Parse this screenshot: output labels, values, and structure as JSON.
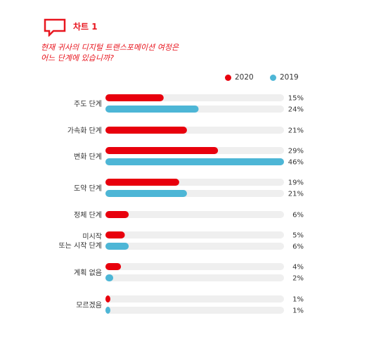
{
  "header": {
    "chart_label": "차트 1",
    "question_line1": "현재 귀사의 디지털 트랜스포메이션 여정은",
    "question_line2": "어느 단계에 있습니까?"
  },
  "colors": {
    "accent": "#e8161f",
    "series_2020": "#e8000d",
    "series_2019": "#4db6d6",
    "track": "#efefef"
  },
  "chart_data": {
    "type": "bar",
    "orientation": "horizontal",
    "xlim": [
      0,
      46
    ],
    "legend_position": "top-right",
    "grid": false,
    "series": [
      {
        "name": "2020",
        "color": "#e8000d"
      },
      {
        "name": "2019",
        "color": "#4db6d6"
      }
    ],
    "categories": [
      {
        "label_lines": [
          "주도 단계"
        ],
        "values": {
          "2020": 15,
          "2019": 24
        }
      },
      {
        "label_lines": [
          "가속화 단계"
        ],
        "values": {
          "2020": 21
        }
      },
      {
        "label_lines": [
          "변화 단계"
        ],
        "values": {
          "2020": 29,
          "2019": 46
        }
      },
      {
        "label_lines": [
          "도약 단계"
        ],
        "values": {
          "2020": 19,
          "2019": 21
        }
      },
      {
        "label_lines": [
          "정체 단계"
        ],
        "values": {
          "2020": 6
        }
      },
      {
        "label_lines": [
          "미시작",
          "또는 시작 단계"
        ],
        "values": {
          "2020": 5,
          "2019": 6
        }
      },
      {
        "label_lines": [
          "계획 없음"
        ],
        "values": {
          "2020": 4,
          "2019": 2
        }
      },
      {
        "label_lines": [
          "모르겠음"
        ],
        "values": {
          "2020": 1,
          "2019": 1
        }
      }
    ]
  }
}
